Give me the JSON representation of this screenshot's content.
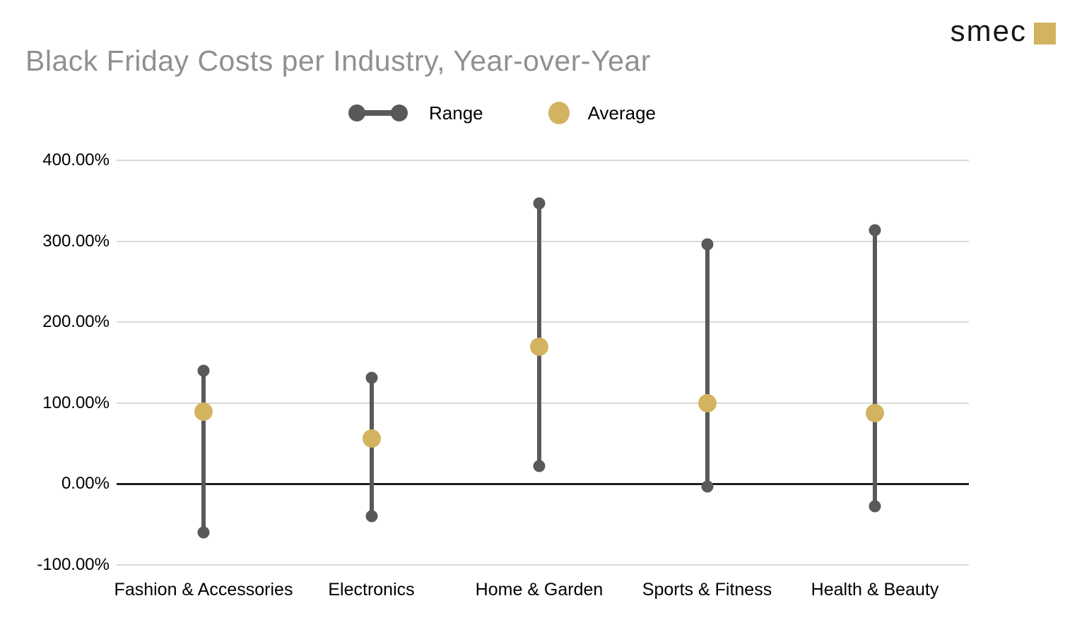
{
  "logo": {
    "text": "smec"
  },
  "chart_data": {
    "type": "dumbbell-range",
    "title": "Black Friday Costs per Industry, Year-over-Year",
    "legend": [
      {
        "label": "Range"
      },
      {
        "label": "Average"
      }
    ],
    "categories": [
      "Fashion & Accessories",
      "Electronics",
      "Home & Garden",
      "Sports & Fitness",
      "Health & Beauty"
    ],
    "series": [
      {
        "name": "Range",
        "type": "range",
        "low": [
          -60,
          -40,
          22,
          -3,
          -28
        ],
        "high": [
          140,
          131,
          347,
          296,
          314
        ]
      },
      {
        "name": "Average",
        "type": "point",
        "values": [
          89,
          56,
          170,
          100,
          88
        ]
      }
    ],
    "units": "percent",
    "ylim": [
      -100,
      400
    ],
    "yticks": [
      {
        "value": 400,
        "label": "400.00%"
      },
      {
        "value": 300,
        "label": "300.00%"
      },
      {
        "value": 200,
        "label": "200.00%"
      },
      {
        "value": 100,
        "label": "100.00%"
      },
      {
        "value": 0,
        "label": "0.00%"
      },
      {
        "value": -100,
        "label": "-100.00%"
      }
    ],
    "grid": true,
    "legend_position": "top-center",
    "colors": {
      "range": "#59595b",
      "average": "#d3b35f",
      "gridline": "#d9d9d9",
      "zero_line": "#1f1f1f",
      "title": "#909090",
      "axis_text": "#000000",
      "logo_gold": "#d3b35f"
    }
  }
}
